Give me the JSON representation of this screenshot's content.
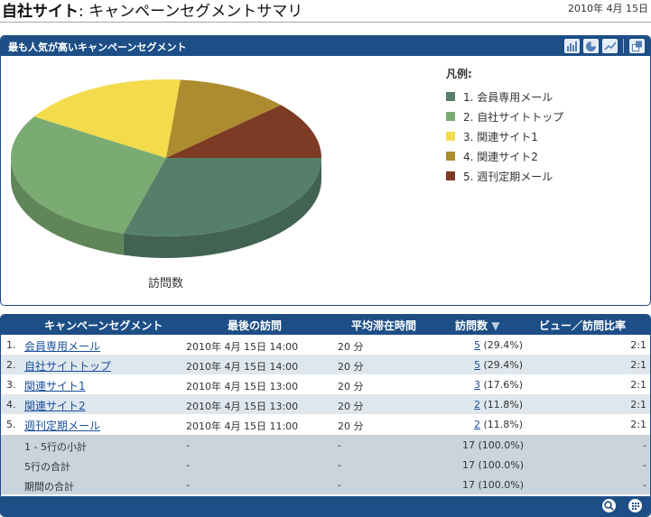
{
  "header": {
    "site": "自社サイト",
    "colon": ":",
    "page_title": "キャンペーンセグメントサマリ",
    "date": "2010年 4月 15日"
  },
  "chart_panel": {
    "title": "最も人気が高いキャンペーンセグメント",
    "tool_icons": [
      "bar-chart-icon",
      "pie-chart-icon",
      "line-chart-icon",
      "popout-icon"
    ],
    "legend_title": "凡例:",
    "axis_label": "訪問数"
  },
  "chart_data": {
    "type": "pie",
    "title": "最も人気が高いキャンペーンセグメント",
    "metric": "訪問数",
    "legend_placement": "right",
    "slices": [
      {
        "label": "1. 会員専用メール",
        "value": 5,
        "color": "#557f6a"
      },
      {
        "label": "2. 自社サイトトップ",
        "value": 5,
        "color": "#7aab72"
      },
      {
        "label": "3. 関連サイト1",
        "value": 3,
        "color": "#f3db4c"
      },
      {
        "label": "4. 関連サイト2",
        "value": 2,
        "color": "#ad8c2f"
      },
      {
        "label": "5. 週刊定期メール",
        "value": 2,
        "color": "#7d3b25"
      }
    ]
  },
  "table": {
    "columns": [
      "キャンペーンセグメント",
      "最後の訪問",
      "平均滞在時間",
      "訪問数",
      "ビュー／訪問比率"
    ],
    "sort_indicator": "▼",
    "rows": [
      {
        "num": "1.",
        "name": "会員専用メール",
        "last": "2010年 4月 15日 14:00",
        "avg": "20 分",
        "visits": "5",
        "pct": "(29.4%)",
        "ratio": "2:1"
      },
      {
        "num": "2.",
        "name": "自社サイトトップ",
        "last": "2010年 4月 15日 14:00",
        "avg": "20 分",
        "visits": "5",
        "pct": "(29.4%)",
        "ratio": "2:1"
      },
      {
        "num": "3.",
        "name": "関連サイト1",
        "last": "2010年 4月 15日 13:00",
        "avg": "20 分",
        "visits": "3",
        "pct": "(17.6%)",
        "ratio": "2:1"
      },
      {
        "num": "4.",
        "name": "関連サイト2",
        "last": "2010年 4月 15日 13:00",
        "avg": "20 分",
        "visits": "2",
        "pct": "(11.8%)",
        "ratio": "2:1"
      },
      {
        "num": "5.",
        "name": "週刊定期メール",
        "last": "2010年 4月 15日 11:00",
        "avg": "20 分",
        "visits": "2",
        "pct": "(11.8%)",
        "ratio": "2:1"
      }
    ],
    "summary": [
      {
        "label": "1 - 5行の小計",
        "last": "-",
        "avg": "-",
        "visits": "17 (100.0%)",
        "ratio": "-"
      },
      {
        "label": "5行の合計",
        "last": "-",
        "avg": "-",
        "visits": "17 (100.0%)",
        "ratio": "-"
      },
      {
        "label": "期間の合計",
        "last": "-",
        "avg": "-",
        "visits": "17 (100.0%)",
        "ratio": "-"
      }
    ],
    "footer_icons": [
      "search-zoom-icon",
      "settings-grid-icon"
    ]
  }
}
